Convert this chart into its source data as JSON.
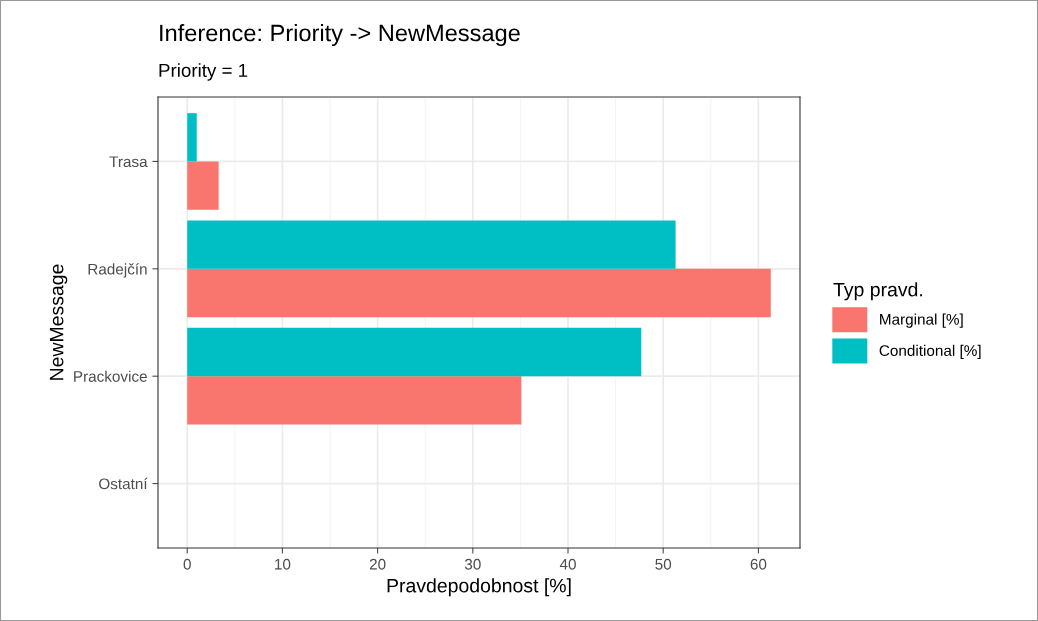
{
  "chart_data": {
    "type": "bar",
    "orientation": "horizontal",
    "title": "Inference: Priority -> NewMessage",
    "subtitle": "Priority = 1",
    "xlabel": "Pravdepodobnost [%]",
    "ylabel": "NewMessage",
    "legend_title": "Typ pravd.",
    "categories": [
      "Trasa",
      "Radejčín",
      "Prackovice",
      "Ostatní"
    ],
    "series": [
      {
        "name": "Marginal [%]",
        "color": "#f8766d",
        "values": [
          3.3,
          61.3,
          35.1,
          0
        ]
      },
      {
        "name": "Conditional [%]",
        "color": "#00bfc4",
        "values": [
          1.0,
          51.3,
          47.7,
          0
        ]
      }
    ],
    "xlim": [
      -3.07,
      64.37
    ],
    "xticks": [
      0,
      10,
      20,
      30,
      40,
      50,
      60
    ],
    "grid": true,
    "legend": "right"
  }
}
